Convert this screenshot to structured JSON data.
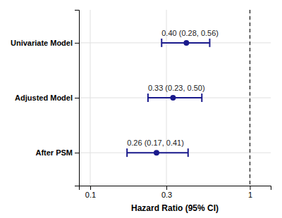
{
  "chart_data": {
    "type": "forest",
    "categories": [
      "Univariate Model",
      "Adjusted Model",
      "After PSM"
    ],
    "values": [
      0.4,
      0.33,
      0.26
    ],
    "value_labels": [
      "0.40 (0.28, 0.56)",
      "0.33 (0.23, 0.50)",
      "0.26 (0.17, 0.41)"
    ],
    "ci_low": [
      0.28,
      0.23,
      0.17
    ],
    "ci_high": [
      0.56,
      0.5,
      0.41
    ],
    "xlabel": "Hazard Ratio (95% CI)",
    "log": "x",
    "xlim": [
      0.085,
      1.35
    ],
    "xticks": [
      0.1,
      0.3,
      1
    ],
    "reference_line": 1,
    "grid": true,
    "color": "#1a1a8c"
  }
}
